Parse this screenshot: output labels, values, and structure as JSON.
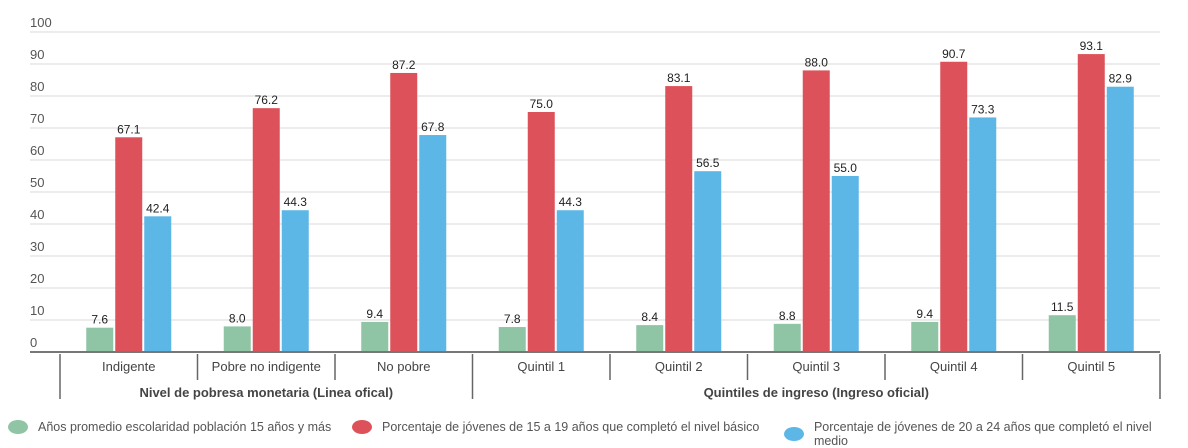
{
  "chart_data": {
    "type": "bar",
    "categories": [
      "Indigente",
      "Pobre no indigente",
      "No pobre",
      "Quintil 1",
      "Quintil 2",
      "Quintil 3",
      "Quintil 4",
      "Quintil 5"
    ],
    "groups": [
      {
        "label": "Nivel de pobresa monetaria (Linea ofical)",
        "categories": [
          "Indigente",
          "Pobre no indigente",
          "No pobre"
        ]
      },
      {
        "label": "Quintiles de ingreso (Ingreso oficial)",
        "categories": [
          "Quintil 1",
          "Quintil 2",
          "Quintil 3",
          "Quintil 4",
          "Quintil 5"
        ]
      }
    ],
    "series": [
      {
        "name": "Años promedio escolaridad población 15 años y más",
        "color": "#8fc4a5",
        "values": [
          7.6,
          8.0,
          9.4,
          7.8,
          8.4,
          8.8,
          9.4,
          11.5
        ]
      },
      {
        "name": "Porcentaje de jóvenes de 15 a 19 años que completó el nivel básico",
        "color": "#dd525a",
        "values": [
          67.1,
          76.2,
          87.2,
          75.0,
          83.1,
          88.0,
          90.7,
          93.1
        ]
      },
      {
        "name": "Porcentaje de jóvenes de 20 a 24 años que completó el nivel medio",
        "color": "#5cb7e6",
        "values": [
          42.4,
          44.3,
          67.8,
          44.3,
          56.5,
          55.0,
          73.3,
          82.9
        ]
      }
    ],
    "y_ticks": [
      "0",
      "10",
      "20",
      "30",
      "40",
      "50",
      "60",
      "70",
      "80",
      "90",
      "100"
    ],
    "ylim": [
      0,
      100
    ],
    "grid": true,
    "legend_position": "bottom"
  }
}
